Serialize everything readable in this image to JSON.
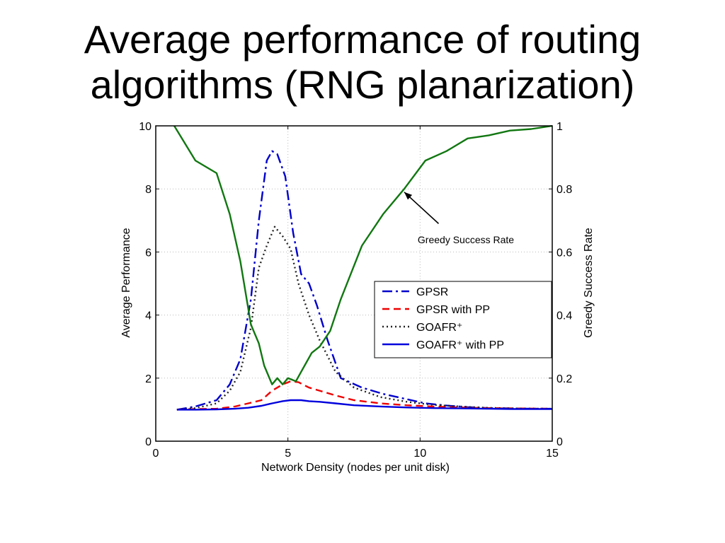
{
  "slide": {
    "title_line1": "Average performance of routing",
    "title_line2": "algorithms (RNG planarization)"
  },
  "chart_data": {
    "type": "line",
    "xlabel": "Network Density (nodes per unit disk)",
    "ylabel": "Average Performance",
    "y2label": "Greedy Success Rate",
    "xlim": [
      0,
      15
    ],
    "ylim": [
      0,
      10
    ],
    "y2lim": [
      0,
      1
    ],
    "xticks": [
      0,
      5,
      10,
      15
    ],
    "yticks": [
      0,
      2,
      4,
      6,
      8,
      10
    ],
    "y2ticks": [
      "0",
      "0.2",
      "0.4",
      "0.6",
      "0.8",
      "1"
    ],
    "grid": true,
    "legend_position": "center-right",
    "annotation": {
      "text": "Greedy Success Rate",
      "arrow_to": [
        9.4,
        0.79
      ],
      "arrow_from": [
        10.7,
        0.69
      ]
    },
    "series": [
      {
        "name": "GPSR",
        "axis": "left",
        "color": "#0000cc",
        "dash": "14 5 3 5",
        "x": [
          0.8,
          1.5,
          2.3,
          2.8,
          3.2,
          3.6,
          3.9,
          4.2,
          4.4,
          4.6,
          4.9,
          5.2,
          5.5,
          5.8,
          6.1,
          6.5,
          7.0,
          7.8,
          8.6,
          9.4,
          10.2,
          11.0,
          11.8,
          12.6,
          13.4,
          14.2,
          15.0
        ],
        "y": [
          1.0,
          1.1,
          1.3,
          1.8,
          2.6,
          4.5,
          7.0,
          8.9,
          9.2,
          9.1,
          8.4,
          6.6,
          5.3,
          5.0,
          4.3,
          3.2,
          2.0,
          1.7,
          1.5,
          1.35,
          1.2,
          1.13,
          1.08,
          1.05,
          1.04,
          1.03,
          1.03
        ]
      },
      {
        "name": "GPSR with PP",
        "axis": "left",
        "color": "#ee0000",
        "dash": "10 6",
        "x": [
          0.8,
          1.5,
          2.3,
          3.0,
          3.5,
          4.0,
          4.4,
          4.8,
          5.1,
          5.4,
          5.8,
          6.2,
          6.8,
          7.5,
          8.5,
          9.5,
          10.5,
          11.5,
          12.5,
          13.5,
          15.0
        ],
        "y": [
          1.0,
          1.02,
          1.03,
          1.1,
          1.2,
          1.3,
          1.6,
          1.8,
          1.9,
          1.87,
          1.7,
          1.6,
          1.45,
          1.3,
          1.2,
          1.14,
          1.1,
          1.07,
          1.05,
          1.04,
          1.03
        ]
      },
      {
        "name": "GOAFR⁺",
        "axis": "left",
        "color": "#222222",
        "dash": "2 4",
        "x": [
          0.8,
          1.5,
          2.3,
          2.8,
          3.2,
          3.6,
          3.9,
          4.2,
          4.5,
          4.8,
          5.1,
          5.4,
          5.8,
          6.2,
          6.8,
          7.5,
          8.5,
          9.5,
          10.5,
          11.5,
          12.5,
          13.5,
          15.0
        ],
        "y": [
          1.0,
          1.05,
          1.2,
          1.6,
          2.2,
          3.6,
          5.5,
          6.2,
          6.8,
          6.5,
          6.1,
          5.0,
          4.0,
          3.2,
          2.2,
          1.7,
          1.4,
          1.25,
          1.15,
          1.1,
          1.06,
          1.04,
          1.03
        ]
      },
      {
        "name": "GOAFR⁺ with PP",
        "axis": "left",
        "color": "#0000dd",
        "dash": "",
        "x": [
          0.8,
          1.5,
          2.3,
          3.0,
          3.5,
          4.0,
          4.4,
          4.8,
          5.1,
          5.5,
          5.8,
          6.2,
          6.8,
          7.5,
          8.5,
          9.5,
          10.5,
          11.5,
          12.5,
          13.5,
          15.0
        ],
        "y": [
          1.0,
          1.0,
          1.01,
          1.03,
          1.06,
          1.12,
          1.2,
          1.27,
          1.3,
          1.3,
          1.27,
          1.25,
          1.2,
          1.14,
          1.1,
          1.07,
          1.05,
          1.04,
          1.03,
          1.02,
          1.02
        ]
      },
      {
        "name": "Greedy Success Rate",
        "axis": "right",
        "color": "#117711",
        "dash": "",
        "x": [
          0.7,
          1.5,
          2.3,
          2.8,
          3.2,
          3.6,
          3.9,
          4.1,
          4.4,
          4.6,
          4.8,
          5.0,
          5.3,
          5.5,
          5.7,
          5.9,
          6.2,
          6.6,
          7.0,
          7.8,
          8.6,
          9.4,
          10.2,
          11.0,
          11.8,
          12.6,
          13.4,
          14.2,
          15.0
        ],
        "y": [
          1.0,
          0.89,
          0.85,
          0.72,
          0.57,
          0.37,
          0.31,
          0.24,
          0.18,
          0.2,
          0.18,
          0.2,
          0.19,
          0.22,
          0.25,
          0.28,
          0.3,
          0.35,
          0.45,
          0.62,
          0.72,
          0.8,
          0.89,
          0.92,
          0.96,
          0.97,
          0.985,
          0.99,
          1.0
        ]
      }
    ]
  }
}
